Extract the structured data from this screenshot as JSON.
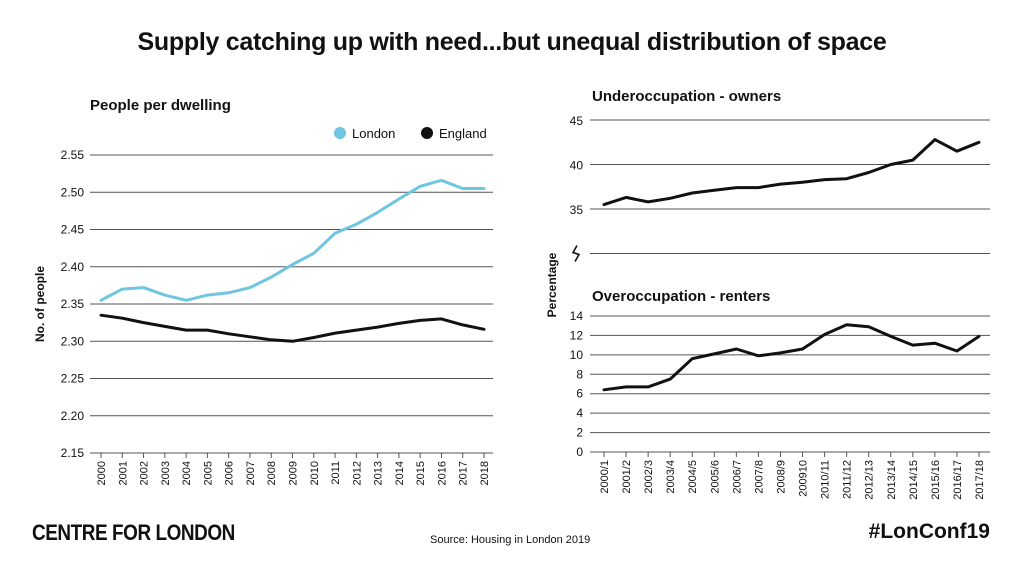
{
  "title": "Supply catching up with need...but unequal distribution of space",
  "footer": {
    "brand": "CENTRE FOR LONDON",
    "source": "Source: Housing in London 2019",
    "hashtag": "#LonConf19"
  },
  "colors": {
    "london": "#6ec6e0",
    "england": "#111111",
    "grid": "#555555"
  },
  "chart_data": [
    {
      "id": "people-per-dwelling",
      "type": "line",
      "title": "People per dwelling",
      "xlabel": "",
      "ylabel": "No. of people",
      "categories": [
        "2000",
        "2001",
        "2002",
        "2003",
        "2004",
        "2005",
        "2006",
        "2007",
        "2008",
        "2009",
        "2010",
        "2011",
        "2012",
        "2013",
        "2014",
        "2015",
        "2016",
        "2017",
        "2018"
      ],
      "yticks": [
        "2.15",
        "2.20",
        "2.25",
        "2.30",
        "2.35",
        "2.40",
        "2.45",
        "2.50",
        "2.55"
      ],
      "ylim": [
        2.15,
        2.55
      ],
      "legend": "top-right",
      "series": [
        {
          "name": "London",
          "color": "#6ec6e0",
          "values": [
            2.355,
            2.37,
            2.372,
            2.362,
            2.355,
            2.362,
            2.365,
            2.372,
            2.386,
            2.403,
            2.418,
            2.445,
            2.457,
            2.473,
            2.491,
            2.508,
            2.516,
            2.505,
            2.505
          ]
        },
        {
          "name": "England",
          "color": "#111111",
          "values": [
            2.335,
            2.331,
            2.325,
            2.32,
            2.315,
            2.315,
            2.31,
            2.306,
            2.302,
            2.3,
            2.305,
            2.311,
            2.315,
            2.319,
            2.324,
            2.328,
            2.33,
            2.322,
            2.316
          ]
        }
      ]
    },
    {
      "id": "underoccupation",
      "type": "line",
      "title": "Underoccupation - owners",
      "ylabel": "Percentage",
      "categories": [
        "2000/1",
        "2001/2",
        "2002/3",
        "2003/4",
        "2004/5",
        "2005/6",
        "2006/7",
        "2007/8",
        "2008/9",
        "200910",
        "2010/11",
        "2011/12",
        "2012/13",
        "2013/14",
        "2014/15",
        "2015/16",
        "2016/17",
        "2017/18"
      ],
      "yticks": [
        "35",
        "40",
        "45"
      ],
      "ylim": [
        30,
        45
      ],
      "series": [
        {
          "name": "Owners",
          "color": "#111111",
          "values": [
            35.5,
            36.3,
            35.8,
            36.2,
            36.8,
            37.1,
            37.4,
            37.4,
            37.8,
            38.0,
            38.3,
            38.4,
            39.1,
            40.0,
            40.5,
            42.8,
            41.5,
            42.5
          ]
        }
      ]
    },
    {
      "id": "overoccupation",
      "type": "line",
      "title": "Overoccupation - renters",
      "ylabel": "Percentage",
      "categories": [
        "2000/1",
        "2001/2",
        "2002/3",
        "2003/4",
        "2004/5",
        "2005/6",
        "2006/7",
        "2007/8",
        "2008/9",
        "200910",
        "2010/11",
        "2011/12",
        "2012/13",
        "2013/14",
        "2014/15",
        "2015/16",
        "2016/17",
        "2017/18"
      ],
      "yticks": [
        "0",
        "2",
        "4",
        "6",
        "8",
        "10",
        "12",
        "14"
      ],
      "ylim": [
        0,
        14
      ],
      "series": [
        {
          "name": "Renters",
          "color": "#111111",
          "values": [
            6.4,
            6.7,
            6.7,
            7.5,
            9.6,
            10.1,
            10.6,
            9.9,
            10.2,
            10.6,
            12.1,
            13.1,
            12.9,
            11.9,
            11.0,
            11.2,
            10.4,
            11.9
          ]
        }
      ]
    }
  ]
}
